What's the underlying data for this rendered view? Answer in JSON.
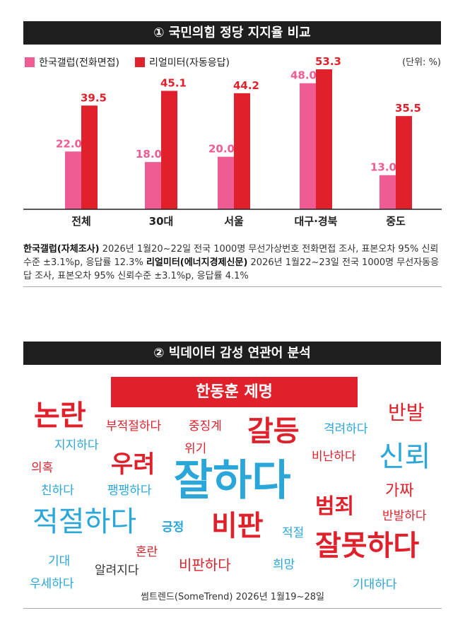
{
  "section1": {
    "title": "① 국민의힘 정당 지지율 비교",
    "unit": "(단위: %)",
    "legend": [
      {
        "label": "한국갤럽(전화면접)",
        "color": "#ef5b93"
      },
      {
        "label": "리얼미터(자동응답)",
        "color": "#e0202a"
      }
    ],
    "note_a_bold": "한국갤럽(자체조사)",
    "note_a": " 2026년 1월20~22일 전국 1000명 무선가상번호 전화면접 조사, 표본오차 95% 신뢰수준 ±3.1%p, 응답률 12.3% ",
    "note_b_bold": "리얼미터(에너지경제신문)",
    "note_b": " 2026년 1월22~23일 전국 1000명 무선자동응답 조사, 표본오차 95% 신뢰수준 ±3.1%p, 응답률 4.1%"
  },
  "chart_data": {
    "type": "bar",
    "categories": [
      "전체",
      "30대",
      "서울",
      "대구·경북",
      "중도"
    ],
    "series": [
      {
        "name": "한국갤럽(전화면접)",
        "values": [
          22.0,
          18.0,
          20.0,
          48.0,
          13.0
        ],
        "color": "#ef5b93"
      },
      {
        "name": "리얼미터(자동응답)",
        "values": [
          39.5,
          45.1,
          44.2,
          53.3,
          35.5
        ],
        "color": "#e0202a"
      }
    ],
    "ylim": [
      0,
      56
    ],
    "grid": false,
    "legend_position": "top-left"
  },
  "section2": {
    "title": "② 빅데이터 감성 연관어 분석",
    "cloud_title": "한동훈 제명",
    "words": {
      "w1": "논란",
      "w2": "부적절하다",
      "w3": "중징계",
      "w4": "갈등",
      "w5": "격려하다",
      "w6": "반발",
      "w7": "지지하다",
      "w8": "위기",
      "w9": "의혹",
      "w10": "우려",
      "w11": "비난하다",
      "w12": "신뢰",
      "w13": "잘하다",
      "w14": "친하다",
      "w15": "팽팽하다",
      "w16": "가짜",
      "w17": "범죄",
      "w18": "적절하다",
      "w19": "긍정",
      "w20": "비판",
      "w21": "반발하다",
      "w22": "적절",
      "w23": "잘못하다",
      "w24": "기대",
      "w25": "혼란",
      "w26": "알려지다",
      "w27": "비판하다",
      "w28": "희망",
      "w29": "우세하다",
      "w30": "기대하다"
    },
    "source": "썸트렌드(SomeTrend) 2026년 1월19~28일"
  }
}
